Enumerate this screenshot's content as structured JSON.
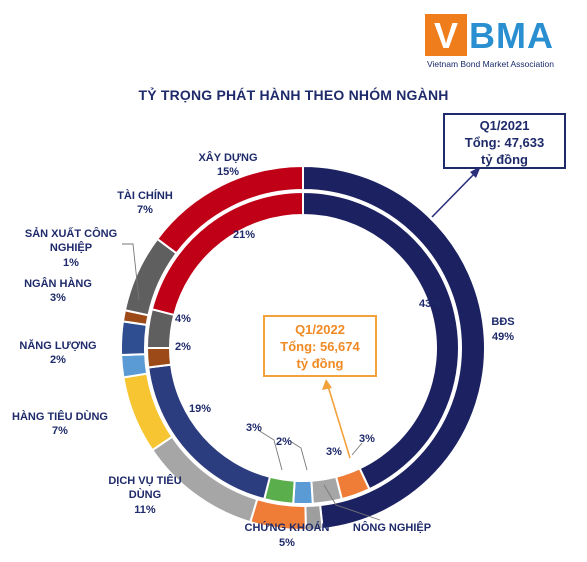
{
  "logo": {
    "mark": "V",
    "rest": "BMA",
    "subtitle": "Vietnam Bond Market Association"
  },
  "chart_data": {
    "type": "pie",
    "title": "TỶ TRỌNG PHÁT HÀNH THEO NHÓM NGÀNH",
    "categories": [
      "BĐS",
      "NÔNG NGHIỆP",
      "CHỨNG KHOÁN",
      "DỊCH VỤ TIÊU DÙNG",
      "HÀNG TIÊU DÙNG",
      "NĂNG LƯỢNG",
      "NGÂN HÀNG",
      "SẢN XUẤT CÔNG NGHIỆP",
      "TÀI CHÍNH",
      "XÂY DỰNG"
    ],
    "series": [
      {
        "name": "Q1/2021",
        "values": [
          49,
          0,
          5,
          11,
          7,
          2,
          3,
          1,
          7,
          15
        ]
      },
      {
        "name": "Q1/2022",
        "values": [
          43,
          3,
          3,
          2,
          19,
          2,
          4,
          0,
          0,
          21
        ],
        "value_labels": [
          "43%",
          "3%",
          "3%",
          "2%",
          "19%",
          "2%",
          "4%",
          "",
          "",
          "21%"
        ]
      }
    ],
    "colors": [
      "#1b2161",
      "#9e9e9e",
      "#f07d37",
      "#a6a6a6",
      "#f7c531",
      "#5b9bd5",
      "#2f4d91",
      "#9c4a18",
      "#5f5f5f",
      "#c00017"
    ],
    "labels": [
      "BĐS\n49%",
      "NÔNG NGHIỆP",
      "CHỨNG KHOÁN\n5%",
      "DỊCH VỤ TIÊU\nDÙNG\n11%",
      "HÀNG TIÊU DÙNG\n7%",
      "NĂNG LƯỢNG\n2%",
      "NGÂN HÀNG\n3%",
      "SẢN XUẤT CÔNG\nNGHIỆP\n1%",
      "TÀI CHÍNH\n7%",
      "XÂY DỰNG\n15%"
    ],
    "legend": "none"
  },
  "callouts": {
    "q2021": {
      "line1": "Q1/2021",
      "line2": "Tổng: 47,633",
      "line3": "tỷ đồng"
    },
    "q2022": {
      "line1": "Q1/2022",
      "line2": "Tổng: 56,674",
      "line3": "tỷ đồng"
    }
  },
  "outer_ring_values": [
    49,
    1.5,
    5,
    11,
    7,
    2,
    3,
    1,
    7,
    15
  ],
  "inner_ring": [
    {
      "label": "43%",
      "value": 43,
      "color": "#1b2161"
    },
    {
      "label": "3%",
      "value": 3,
      "color": "#f07d37"
    },
    {
      "label": "3%",
      "value": 3,
      "color": "#a6a6a6"
    },
    {
      "label": "",
      "value": 2,
      "color": "#5b9bd5"
    },
    {
      "label": "3%",
      "value": 3,
      "color": "#5aae4b"
    },
    {
      "label": "19%",
      "value": 19,
      "color": "#2b3c7f"
    },
    {
      "label": "2%",
      "value": 2,
      "color": "#9c4a18"
    },
    {
      "label": "4%",
      "value": 4,
      "color": "#5f5f5f"
    },
    {
      "label": "21%",
      "value": 21,
      "color": "#c00017"
    }
  ]
}
